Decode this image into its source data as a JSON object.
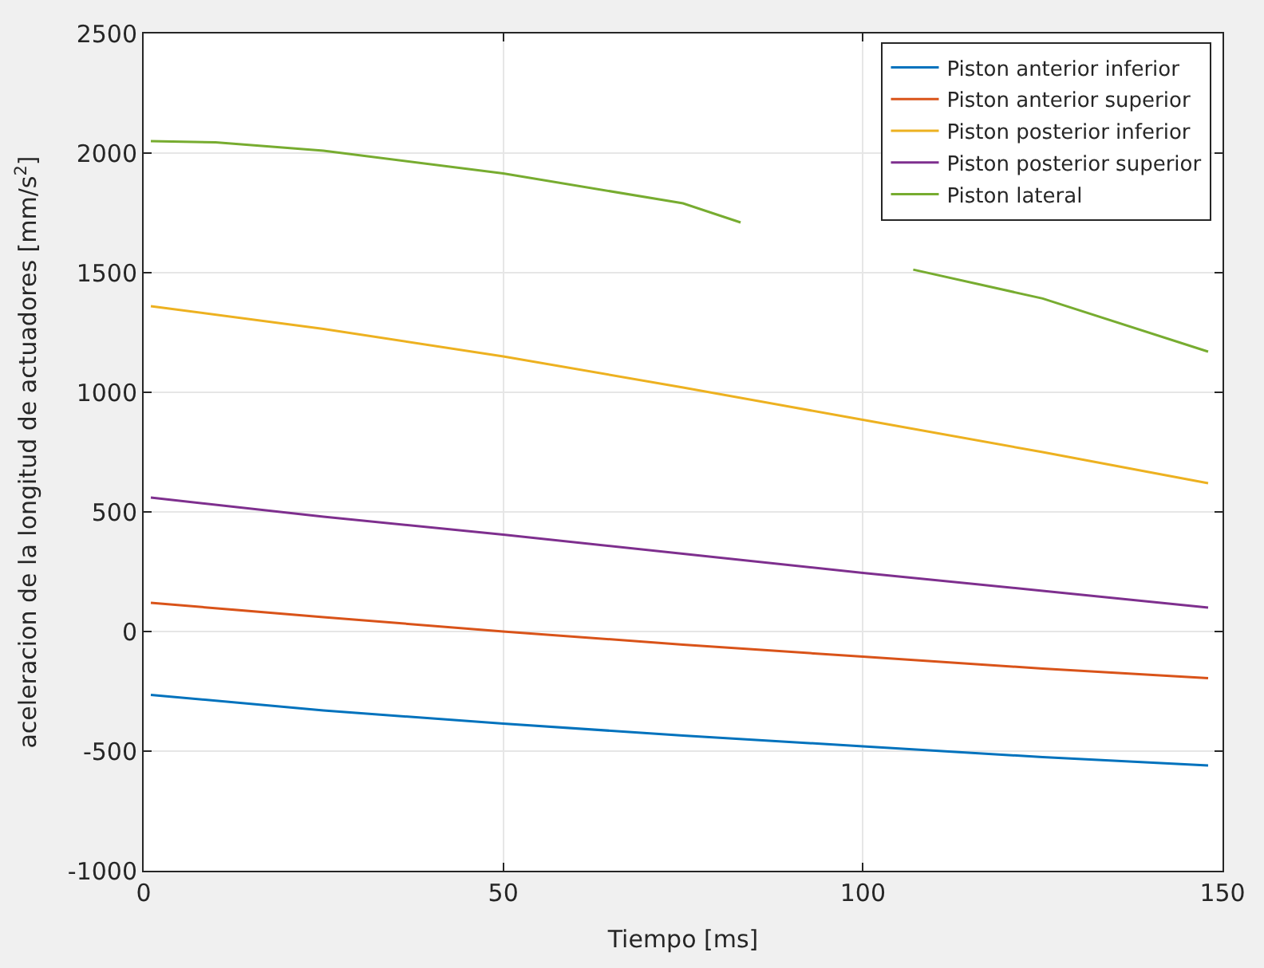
{
  "chart_data": {
    "type": "line",
    "xlabel": "Tiempo [ms]",
    "ylabel": "aceleracion de la longitud de actuadores [mm/s$^{2}$]",
    "xlim": [
      0,
      150
    ],
    "xticks": [
      0,
      50,
      100,
      150
    ],
    "ylim": [
      -1000,
      2500
    ],
    "yticks": [
      -1000,
      -500,
      0,
      500,
      1000,
      1500,
      2000,
      2500
    ],
    "grid": true,
    "legend": "top right",
    "line_style": "solid",
    "series": [
      {
        "name": "Piston anterior inferior",
        "color": "#0072bd",
        "x": [
          1,
          25,
          50,
          75,
          100,
          125,
          148
        ],
        "values": [
          -265,
          -330,
          -385,
          -435,
          -480,
          -525,
          -560
        ]
      },
      {
        "name": "Piston anterior superior",
        "color": "#d95319",
        "x": [
          1,
          25,
          50,
          75,
          100,
          125,
          148
        ],
        "values": [
          120,
          60,
          0,
          -55,
          -105,
          -155,
          -195
        ]
      },
      {
        "name": "Piston posterior inferior",
        "color": "#edb120",
        "x": [
          1,
          25,
          50,
          75,
          100,
          125,
          148
        ],
        "values": [
          1360,
          1265,
          1150,
          1020,
          885,
          750,
          620
        ]
      },
      {
        "name": "Piston posterior superior",
        "color": "#7e2f8e",
        "x": [
          1,
          25,
          50,
          75,
          100,
          125,
          148
        ],
        "values": [
          560,
          480,
          405,
          325,
          245,
          170,
          100
        ]
      },
      {
        "name": "Piston lateral",
        "color": "#77ac30",
        "x": [
          1,
          10,
          25,
          50,
          75,
          83,
          95,
          107,
          125,
          148
        ],
        "values": [
          2050,
          2045,
          2010,
          1915,
          1790,
          1710,
          null,
          1513,
          1392,
          1170
        ]
      }
    ]
  }
}
